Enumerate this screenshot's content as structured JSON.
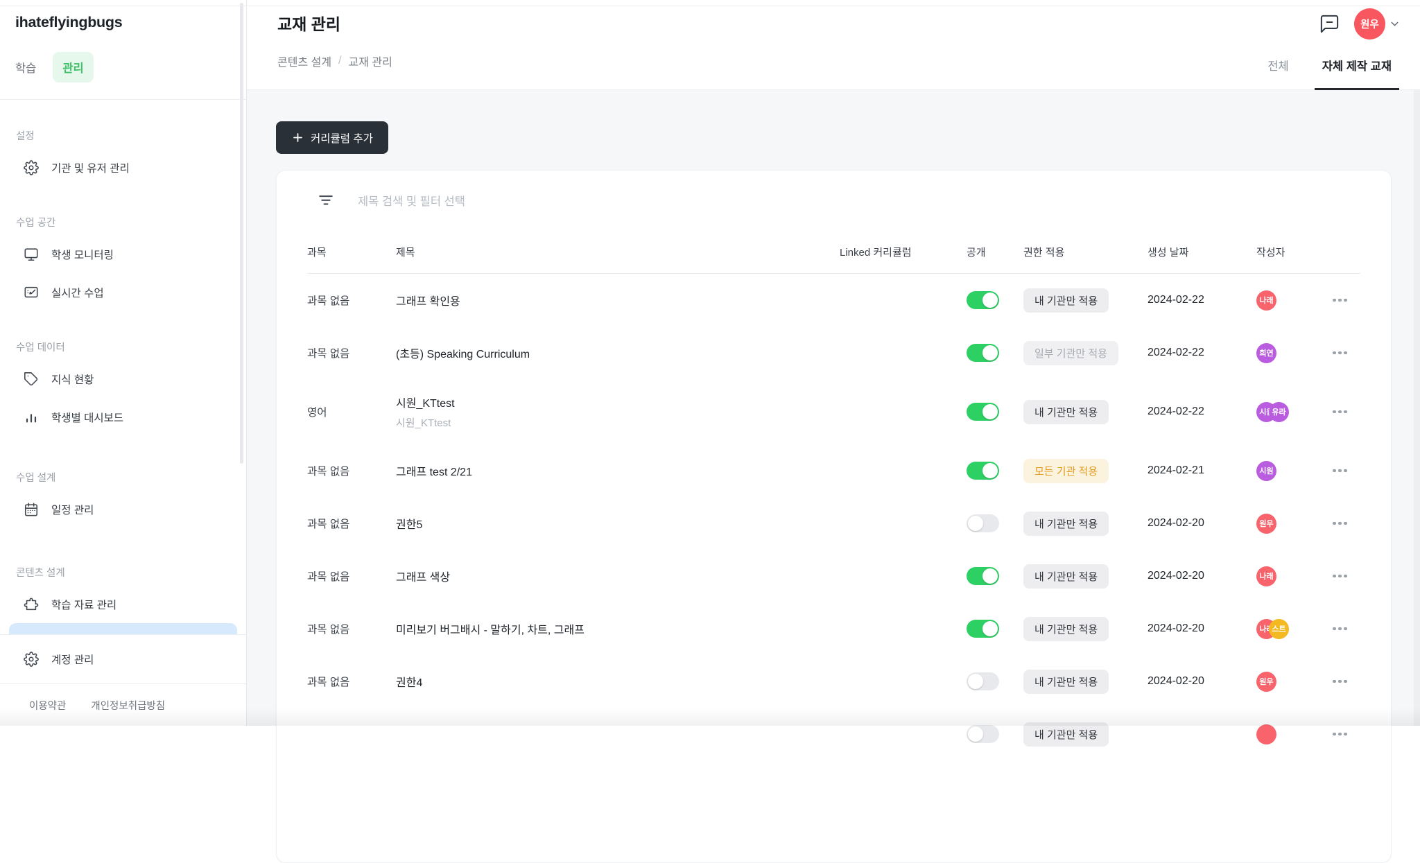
{
  "sidebar": {
    "logo": "ihateflyingbugs",
    "mode_tabs": [
      {
        "label": "학습",
        "active": false
      },
      {
        "label": "관리",
        "active": true
      }
    ],
    "accent_green": "#3fc168",
    "selected_bg": "#d7e9fd",
    "sections": [
      {
        "label": "설정",
        "items": [
          {
            "icon": "gear-icon",
            "label": "기관 및 유저 관리"
          }
        ]
      },
      {
        "label": "수업 공간",
        "items": [
          {
            "icon": "monitor-icon",
            "label": "학생 모니터링"
          },
          {
            "icon": "live-class-icon",
            "label": "실시간 수업"
          }
        ]
      },
      {
        "label": "수업 데이터",
        "items": [
          {
            "icon": "tag-icon",
            "label": "지식 현황"
          },
          {
            "icon": "bar-chart-icon",
            "label": "학생별 대시보드"
          }
        ]
      },
      {
        "label": "수업 설계",
        "items": [
          {
            "icon": "calendar-icon",
            "label": "일정 관리"
          }
        ]
      },
      {
        "label": "콘텐츠 설계",
        "items": [
          {
            "icon": "puzzle-icon",
            "label": "학습 자료 관리"
          },
          {
            "icon": "book-icon",
            "label": "",
            "selected": true
          }
        ]
      }
    ],
    "account_item": {
      "icon": "gear-icon",
      "label": "계정 관리"
    },
    "footer_links": [
      "이용약관",
      "개인정보취급방침"
    ]
  },
  "header": {
    "title": "교재 관리",
    "breadcrumb": [
      "콘텐츠 설계",
      "교재 관리"
    ],
    "user": {
      "initials": "원우",
      "color": "#f8575f"
    },
    "tabs": [
      {
        "label": "전체",
        "active": false
      },
      {
        "label": "자체 제작 교재",
        "active": true
      }
    ]
  },
  "toolbar": {
    "add_button_label": "커리큘럼 추가"
  },
  "table": {
    "filter_placeholder": "제목 검색 및 필터 선택",
    "columns": [
      "과목",
      "제목",
      "Linked 커리큘럼",
      "공개",
      "권한 적용",
      "생성 날짜",
      "작성자",
      ""
    ],
    "toggle_on_color": "#2dd063",
    "rows": [
      {
        "subject": "과목 없음",
        "title": "그래프 확인용",
        "subtitle": "",
        "public": true,
        "permission": {
          "label": "내 기관만 적용",
          "style": "default"
        },
        "date": "2024-02-22",
        "authors": [
          {
            "text": "나래",
            "color": "#f8636c"
          }
        ]
      },
      {
        "subject": "과목 없음",
        "title": "(초등) Speaking Curriculum",
        "subtitle": "",
        "public": true,
        "permission": {
          "label": "일부 기관만 적용",
          "style": "muted"
        },
        "date": "2024-02-22",
        "authors": [
          {
            "text": "희연",
            "color": "#ba5ce0"
          }
        ]
      },
      {
        "subject": "영어",
        "title": "시원_KTtest",
        "subtitle": "시원_KTtest",
        "public": true,
        "permission": {
          "label": "내 기관만 적용",
          "style": "default"
        },
        "date": "2024-02-22",
        "authors": [
          {
            "text": "시원",
            "color": "#ba5ce0"
          },
          {
            "text": "유라",
            "color": "#ba5ce0"
          }
        ]
      },
      {
        "subject": "과목 없음",
        "title": "그래프 test 2/21",
        "subtitle": "",
        "public": true,
        "permission": {
          "label": "모든 기관 적용",
          "style": "amber"
        },
        "date": "2024-02-21",
        "authors": [
          {
            "text": "시원",
            "color": "#ba5ce0"
          }
        ]
      },
      {
        "subject": "과목 없음",
        "title": "권한5",
        "subtitle": "",
        "public": false,
        "permission": {
          "label": "내 기관만 적용",
          "style": "default"
        },
        "date": "2024-02-20",
        "authors": [
          {
            "text": "원우",
            "color": "#f8636c"
          }
        ]
      },
      {
        "subject": "과목 없음",
        "title": "그래프 색상",
        "subtitle": "",
        "public": true,
        "permission": {
          "label": "내 기관만 적용",
          "style": "default"
        },
        "date": "2024-02-20",
        "authors": [
          {
            "text": "나래",
            "color": "#f8636c"
          }
        ]
      },
      {
        "subject": "과목 없음",
        "title": "미리보기 버그배시 - 말하기, 차트, 그래프",
        "subtitle": "",
        "public": true,
        "permission": {
          "label": "내 기관만 적용",
          "style": "default"
        },
        "date": "2024-02-20",
        "authors": [
          {
            "text": "나래",
            "color": "#f8636c"
          },
          {
            "text": "스트",
            "color": "#f4b820"
          }
        ]
      },
      {
        "subject": "과목 없음",
        "title": "권한4",
        "subtitle": "",
        "public": false,
        "permission": {
          "label": "내 기관만 적용",
          "style": "default"
        },
        "date": "2024-02-20",
        "authors": [
          {
            "text": "원우",
            "color": "#f8636c"
          }
        ]
      },
      {
        "subject": "",
        "title": "",
        "subtitle": "",
        "public": false,
        "permission": {
          "label": "내 기관만 적용",
          "style": "default"
        },
        "date": "",
        "authors": [
          {
            "text": "",
            "color": "#f8636c"
          }
        ],
        "partial": true
      }
    ]
  }
}
